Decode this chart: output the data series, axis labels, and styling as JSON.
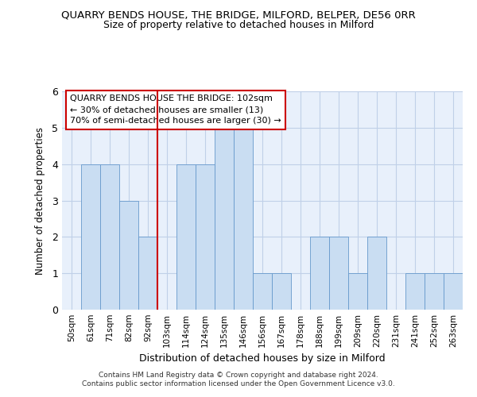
{
  "title": "QUARRY BENDS HOUSE, THE BRIDGE, MILFORD, BELPER, DE56 0RR",
  "subtitle": "Size of property relative to detached houses in Milford",
  "xlabel": "Distribution of detached houses by size in Milford",
  "ylabel": "Number of detached properties",
  "categories": [
    "50sqm",
    "61sqm",
    "71sqm",
    "82sqm",
    "92sqm",
    "103sqm",
    "114sqm",
    "124sqm",
    "135sqm",
    "146sqm",
    "156sqm",
    "167sqm",
    "178sqm",
    "188sqm",
    "199sqm",
    "209sqm",
    "220sqm",
    "231sqm",
    "241sqm",
    "252sqm",
    "263sqm"
  ],
  "values": [
    0,
    4,
    4,
    3,
    2,
    0,
    4,
    4,
    5,
    5,
    1,
    1,
    0,
    2,
    2,
    1,
    2,
    0,
    1,
    1,
    1
  ],
  "bar_color": "#c9ddf2",
  "bar_edge_color": "#6699cc",
  "grid_color": "#c0d0e8",
  "background_color": "#e8f0fb",
  "vline_x_index": 5,
  "vline_color": "#cc0000",
  "annotation_text": "QUARRY BENDS HOUSE THE BRIDGE: 102sqm\n← 30% of detached houses are smaller (13)\n70% of semi-detached houses are larger (30) →",
  "annotation_box_edge": "#cc0000",
  "ylim": [
    0,
    6
  ],
  "yticks": [
    0,
    1,
    2,
    3,
    4,
    5,
    6
  ],
  "footer": "Contains HM Land Registry data © Crown copyright and database right 2024.\nContains public sector information licensed under the Open Government Licence v3.0."
}
